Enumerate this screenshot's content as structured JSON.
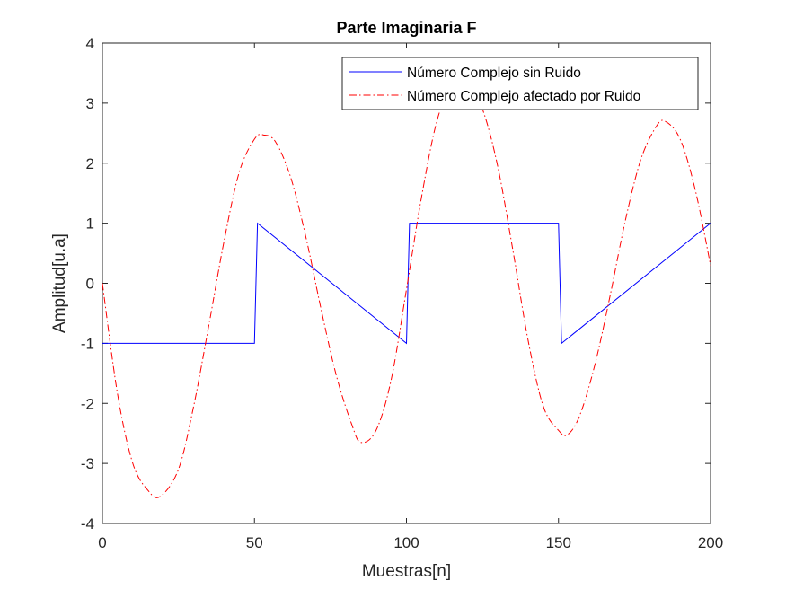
{
  "chart_data": {
    "type": "line",
    "title": "Parte Imaginaria F",
    "xlabel": "Muestras[n]",
    "ylabel": "Amplitud[u.a]",
    "xlim": [
      0,
      200
    ],
    "ylim": [
      -4,
      4
    ],
    "xticks": [
      0,
      50,
      100,
      150,
      200
    ],
    "yticks": [
      -4,
      -3,
      -2,
      -1,
      0,
      1,
      2,
      3,
      4
    ],
    "grid": false,
    "legend_position": "top-right",
    "series": [
      {
        "name": "Número Complejo sin Ruido",
        "color": "#0000ff",
        "line_style": "solid",
        "x": [
          0,
          50,
          51,
          100,
          101,
          150,
          151,
          200
        ],
        "y": [
          -1,
          -1,
          1,
          -1,
          1,
          1,
          -1,
          1
        ]
      },
      {
        "name": "Número Complejo afectado por Ruido",
        "color": "#ff0000",
        "line_style": "dashdot",
        "x": [
          0,
          5,
          10,
          15,
          19,
          25,
          30,
          35,
          40,
          45,
          50,
          53,
          57,
          62,
          67,
          72,
          77,
          82,
          85,
          90,
          95,
          100,
          105,
          110,
          115,
          120,
          125,
          130,
          135,
          140,
          145,
          150,
          153,
          157,
          162,
          167,
          172,
          177,
          182,
          185,
          190,
          195,
          200
        ],
        "y": [
          0,
          -1.85,
          -3.0,
          -3.45,
          -3.55,
          -3.1,
          -2.05,
          -0.7,
          0.7,
          1.85,
          2.4,
          2.47,
          2.35,
          1.75,
          0.75,
          -0.45,
          -1.55,
          -2.35,
          -2.65,
          -2.45,
          -1.6,
          -0.1,
          1.45,
          2.7,
          3.3,
          3.35,
          2.9,
          1.95,
          0.55,
          -0.95,
          -2.05,
          -2.45,
          -2.52,
          -2.2,
          -1.35,
          -0.2,
          1.05,
          2.05,
          2.6,
          2.7,
          2.4,
          1.55,
          0.3
        ]
      }
    ]
  }
}
